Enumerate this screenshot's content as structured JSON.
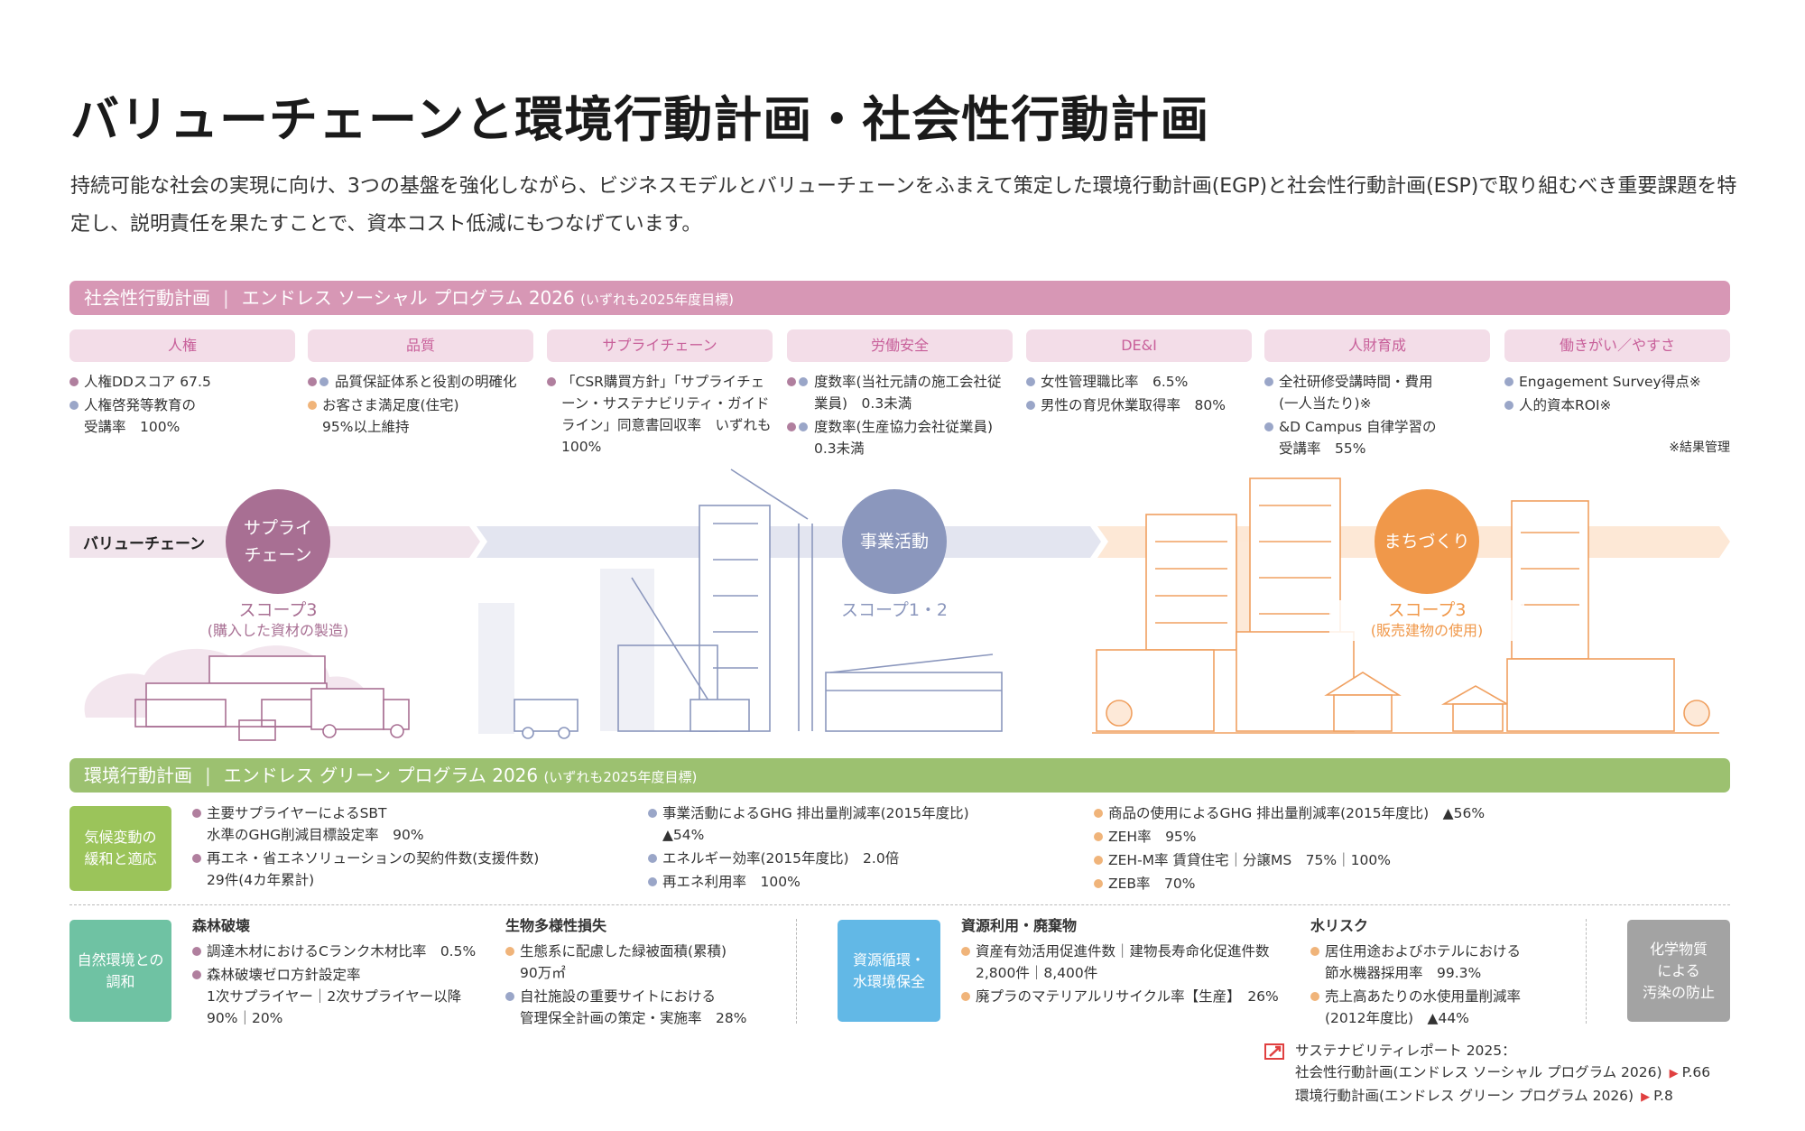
{
  "title": "バリューチェーンと環境行動計画・社会性行動計画",
  "lead": "持続可能な社会の実現に向け、3つの基盤を強化しながら、ビジネスモデルとバリューチェーンをふまえて策定した環境行動計画(EGP)と社会性行動計画(ESP)で取り組むべき重要課題を特定し、説明責任を果たすことで、資本コスト低減にもつなげています。",
  "colors": {
    "mauve": "#b07f9e",
    "blue": "#9aa6c8",
    "orange": "#f0b47a",
    "social_bar": "#d797b5",
    "green_bar": "#9cc170"
  },
  "social": {
    "bar_title": "社会性行動計画",
    "bar_program": "エンドレス ソーシャル プログラム 2026",
    "bar_note": "(いずれも2025年度目標)",
    "categories": [
      {
        "label": "人権",
        "items": [
          {
            "dots": [
              "mauve"
            ],
            "text": "人権DDスコア 67.5"
          },
          {
            "dots": [
              "blue"
            ],
            "text": "人権啓発等教育の\n受講率　100%"
          }
        ]
      },
      {
        "label": "品質",
        "items": [
          {
            "dots": [
              "mauve",
              "blue"
            ],
            "text": "品質保証体系と役割の明確化"
          },
          {
            "dots": [
              "orange"
            ],
            "text": "お客さま満足度(住宅)\n95%以上維持"
          }
        ]
      },
      {
        "label": "サプライチェーン",
        "items": [
          {
            "dots": [
              "mauve"
            ],
            "text": "「CSR購買方針」「サプライチェーン・サステナビリティ・ガイドライン」同意書回収率　いずれも100%"
          }
        ]
      },
      {
        "label": "労働安全",
        "items": [
          {
            "dots": [
              "mauve",
              "blue"
            ],
            "text": "度数率(当社元請の施工会社従業員)　0.3未満"
          },
          {
            "dots": [
              "mauve",
              "blue"
            ],
            "text": "度数率(生産協力会社従業員)\n0.3未満"
          }
        ]
      },
      {
        "label": "DE&I",
        "items": [
          {
            "dots": [
              "blue"
            ],
            "text": "女性管理職比率　6.5%"
          },
          {
            "dots": [
              "blue"
            ],
            "text": "男性の育児休業取得率　80%"
          }
        ]
      },
      {
        "label": "人財育成",
        "items": [
          {
            "dots": [
              "blue"
            ],
            "text": "全社研修受講時間・費用\n(一人当たり)※"
          },
          {
            "dots": [
              "blue"
            ],
            "text": "&D Campus 自律学習の\n受講率　55%"
          }
        ]
      },
      {
        "label": "働きがい／やすさ",
        "items": [
          {
            "dots": [
              "blue"
            ],
            "text": "Engagement Survey得点※"
          },
          {
            "dots": [
              "blue"
            ],
            "text": "人的資本ROI※"
          }
        ]
      }
    ],
    "footnote": "※結果管理"
  },
  "value_chain": {
    "label": "バリューチェーン",
    "stages": [
      {
        "name": "サプライ\nチェーン",
        "scope": "スコープ3",
        "scope_note": "(購入した資材の製造)",
        "color": "#a86f93"
      },
      {
        "name": "事業活動",
        "scope": "スコープ1・2",
        "scope_note": "",
        "color": "#8b97bd"
      },
      {
        "name": "まちづくり",
        "scope": "スコープ3",
        "scope_note": "(販売建物の使用)",
        "color": "#f0984a"
      }
    ]
  },
  "green": {
    "bar_title": "環境行動計画",
    "bar_program": "エンドレス グリーン プログラム 2026",
    "bar_note": "(いずれも2025年度目標)",
    "climate": {
      "label": "気候変動の\n緩和と適応",
      "color": "#9bc45a",
      "columns": [
        [
          {
            "dots": [
              "mauve"
            ],
            "text": "主要サプライヤーによるSBT\n水準のGHG削減目標設定率　90%"
          },
          {
            "dots": [
              "mauve"
            ],
            "text": "再エネ・省エネソリューションの契約件数(支援件数)\n29件(4カ年累計)"
          }
        ],
        [
          {
            "dots": [
              "blue"
            ],
            "text": "事業活動によるGHG 排出量削減率(2015年度比)\n▲54%"
          },
          {
            "dots": [
              "blue"
            ],
            "text": "エネルギー効率(2015年度比)　2.0倍"
          },
          {
            "dots": [
              "blue"
            ],
            "text": "再エネ利用率　100%"
          }
        ],
        [
          {
            "dots": [
              "orange"
            ],
            "text": "商品の使用によるGHG 排出量削減率(2015年度比)　▲56%"
          },
          {
            "dots": [
              "orange"
            ],
            "text": "ZEH率　95%"
          },
          {
            "dots": [
              "orange"
            ],
            "text": "ZEH-M率 賃貸住宅｜分譲MS　75%｜100%"
          },
          {
            "dots": [
              "orange"
            ],
            "text": "ZEB率　70%"
          }
        ]
      ]
    },
    "nature": {
      "label": "自然環境との\n調和",
      "color": "#6fc2a3",
      "groups": [
        {
          "heading": "森林破壊",
          "items": [
            {
              "dots": [
                "mauve"
              ],
              "text": "調達木材におけるCランク木材比率　0.5%"
            },
            {
              "dots": [
                "mauve"
              ],
              "text": "森林破壊ゼロ方針設定率\n1次サプライヤー｜2次サプライヤー以降\n90%｜20%"
            }
          ]
        },
        {
          "heading": "生物多様性損失",
          "items": [
            {
              "dots": [
                "orange"
              ],
              "text": "生態系に配慮した緑被面積(累積)\n90万㎡"
            },
            {
              "dots": [
                "blue"
              ],
              "text": "自社施設の重要サイトにおける\n管理保全計画の策定・実施率　28%"
            }
          ]
        }
      ]
    },
    "resource": {
      "label": "資源循環・\n水環境保全",
      "color": "#62b8e6",
      "groups": [
        {
          "heading": "資源利用・廃棄物",
          "items": [
            {
              "dots": [
                "orange"
              ],
              "text": "資産有効活用促進件数｜建物長寿命化促進件数\n2,800件｜8,400件"
            },
            {
              "dots": [
                "orange"
              ],
              "text": "廃プラのマテリアルリサイクル率【生産】　26%"
            }
          ]
        },
        {
          "heading": "水リスク",
          "items": [
            {
              "dots": [
                "orange"
              ],
              "text": "居住用途およびホテルにおける\n節水機器採用率　99.3%"
            },
            {
              "dots": [
                "orange"
              ],
              "text": "売上高あたりの水使用量削減率\n(2012年度比)　▲44%"
            }
          ]
        }
      ]
    },
    "chemical": {
      "label": "化学物質\nによる\n汚染の防止",
      "color": "#a3a3a3"
    }
  },
  "reference": {
    "icon": "external-link-icon",
    "heading": "サステナビリティレポート 2025：",
    "links": [
      {
        "text": "社会性行動計画(エンドレス ソーシャル プログラム 2026)",
        "page": "P.66"
      },
      {
        "text": "環境行動計画(エンドレス グリーン プログラム 2026)",
        "page": "P.8"
      }
    ]
  }
}
